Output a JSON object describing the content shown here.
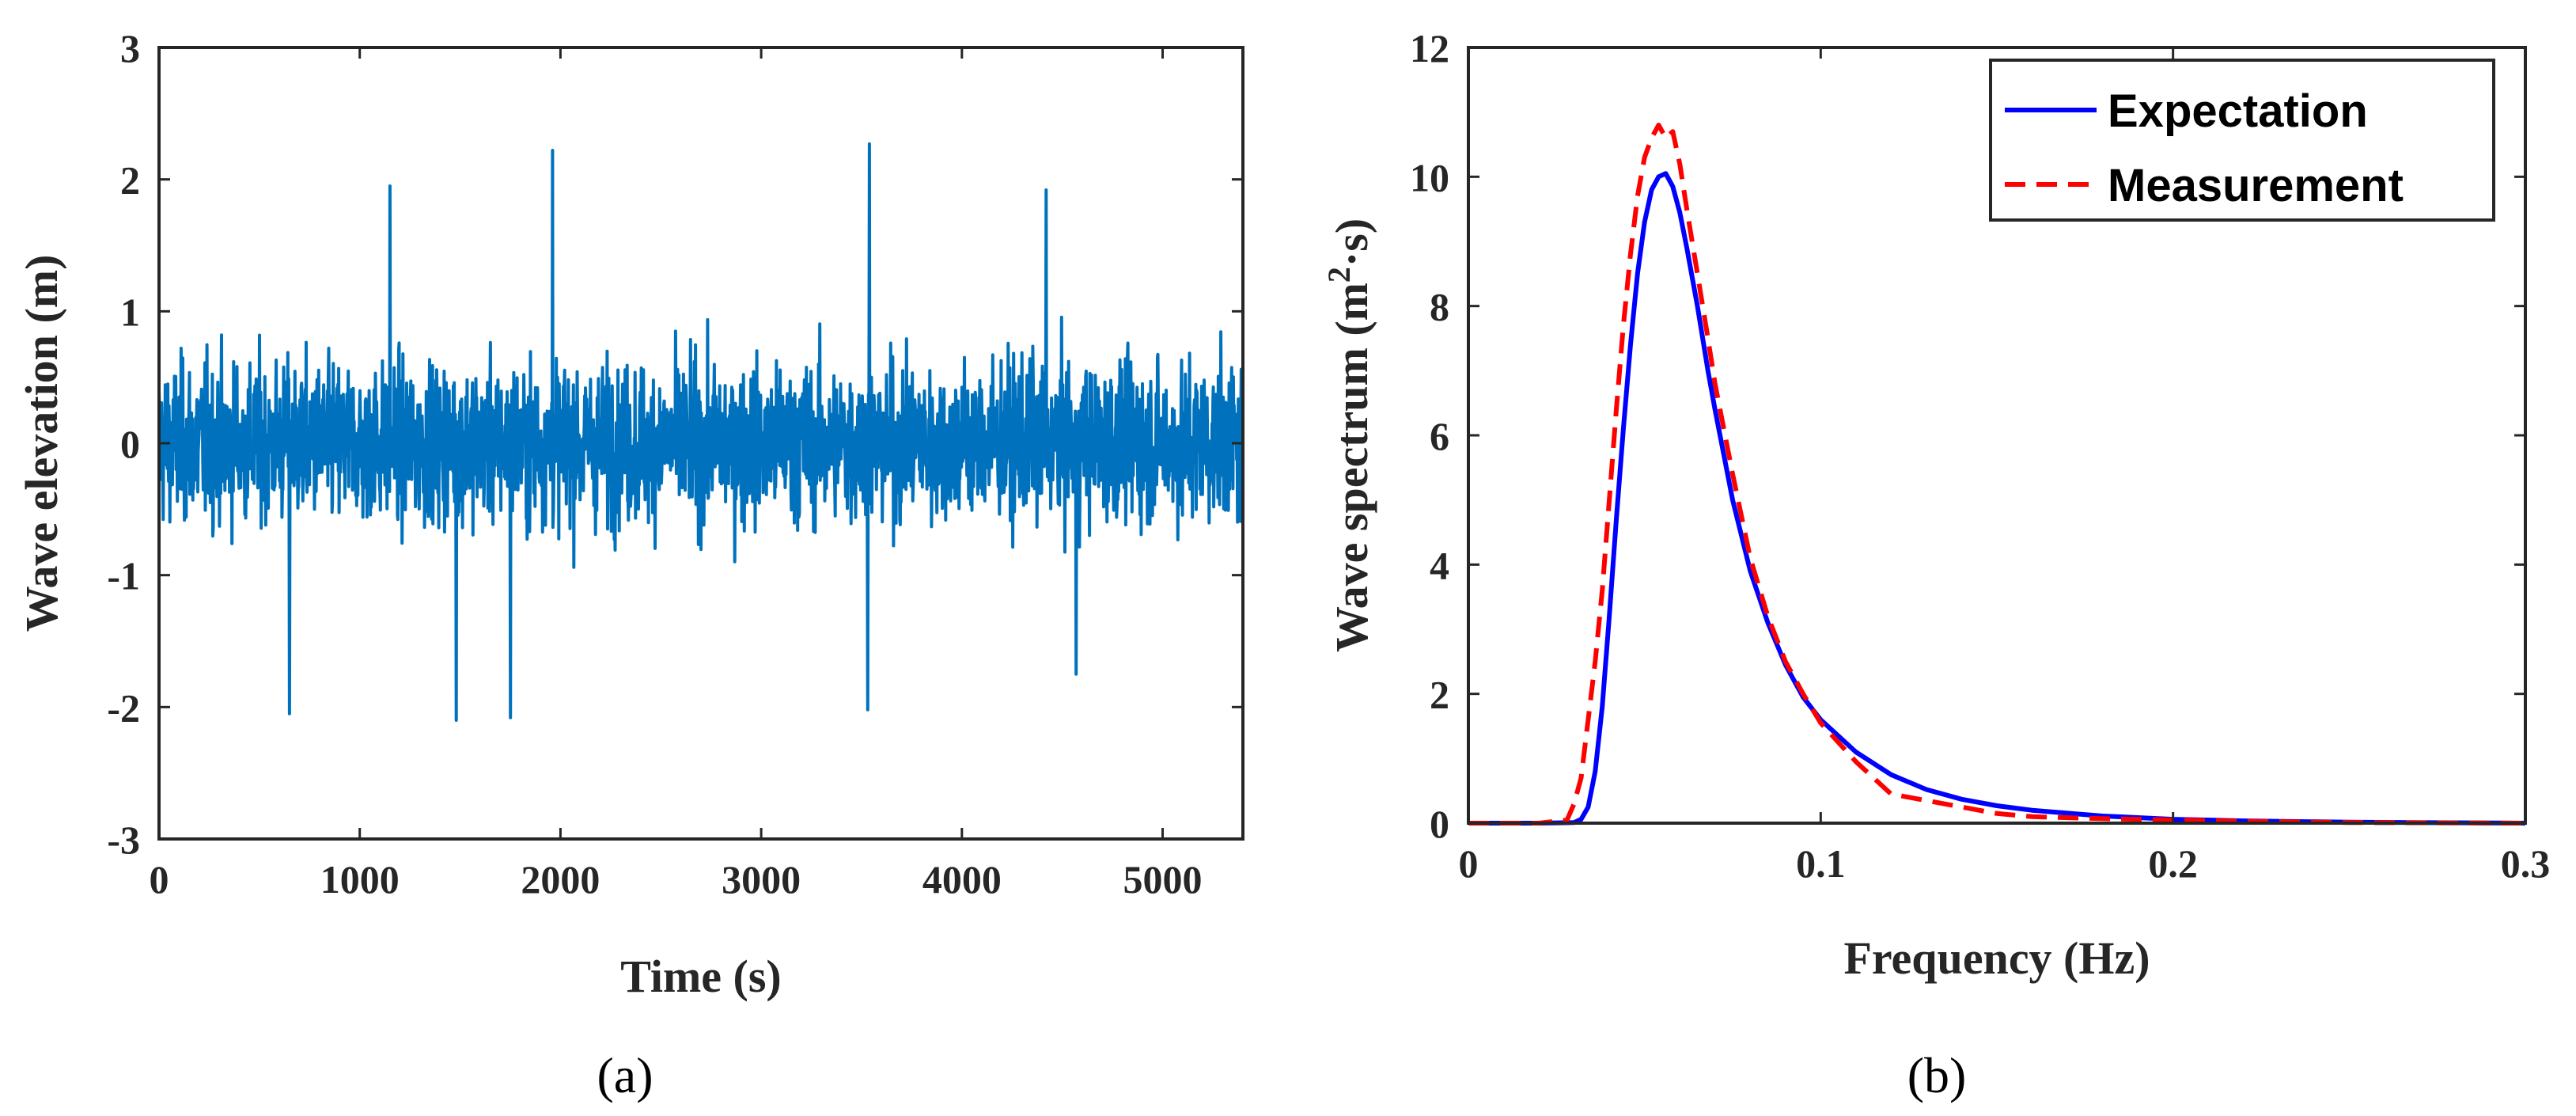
{
  "chart_data": [
    {
      "type": "line",
      "panel_label": "(a)",
      "xlabel": "Time (s)",
      "ylabel": "Wave elevation (m)",
      "xlim": [
        0,
        5400
      ],
      "ylim": [
        -3,
        3
      ],
      "xticks": [
        0,
        1000,
        2000,
        3000,
        4000,
        5000
      ],
      "yticks": [
        -3,
        -2,
        -1,
        0,
        1,
        2,
        3
      ],
      "grid": false,
      "series": [
        {
          "name": "Wave elevation",
          "color": "#0072BD",
          "description_values": {
            "duration_s": 5400,
            "typical_amplitude_m": 1.0,
            "max_m": 2.27,
            "min_m": -2.1,
            "notable_peaks": [
              {
                "x": 1960,
                "y": 2.22
              },
              {
                "x": 3540,
                "y": 2.27
              },
              {
                "x": 1150,
                "y": 1.95
              },
              {
                "x": 4420,
                "y": 1.92
              },
              {
                "x": 1480,
                "y": -2.1
              },
              {
                "x": 1750,
                "y": -2.08
              },
              {
                "x": 3530,
                "y": -2.02
              },
              {
                "x": 650,
                "y": -2.05
              },
              {
                "x": 4570,
                "y": -1.75
              }
            ]
          }
        }
      ]
    },
    {
      "type": "line",
      "panel_label": "(b)",
      "xlabel": "Frequency (Hz)",
      "ylabel_prefix": "Wave spectrum (m",
      "ylabel_sup": "2",
      "ylabel_suffix": "·s)",
      "xlim": [
        0,
        0.3
      ],
      "ylim": [
        0,
        12
      ],
      "xticks": [
        0,
        0.1,
        0.2,
        0.3
      ],
      "xtick_labels": [
        "0",
        "0.1",
        "0.2",
        "0.3"
      ],
      "yticks": [
        0,
        2,
        4,
        6,
        8,
        10,
        12
      ],
      "grid": false,
      "legend_position": "top-right",
      "series": [
        {
          "name": "Expectation",
          "color": "#0000FF",
          "style": "solid",
          "x": [
            0,
            0.02,
            0.03,
            0.032,
            0.034,
            0.036,
            0.038,
            0.04,
            0.042,
            0.044,
            0.046,
            0.048,
            0.05,
            0.052,
            0.054,
            0.056,
            0.058,
            0.06,
            0.062,
            0.065,
            0.068,
            0.07,
            0.075,
            0.08,
            0.085,
            0.09,
            0.095,
            0.1,
            0.11,
            0.12,
            0.13,
            0.14,
            0.15,
            0.16,
            0.18,
            0.2,
            0.22,
            0.25,
            0.3
          ],
          "y": [
            0,
            0,
            0.01,
            0.06,
            0.25,
            0.8,
            1.8,
            3.2,
            4.7,
            6.1,
            7.4,
            8.5,
            9.3,
            9.8,
            10.0,
            10.05,
            9.85,
            9.45,
            8.9,
            8.0,
            7.0,
            6.4,
            5.0,
            3.9,
            3.1,
            2.45,
            1.95,
            1.6,
            1.1,
            0.75,
            0.52,
            0.37,
            0.27,
            0.2,
            0.11,
            0.06,
            0.035,
            0.015,
            0
          ]
        },
        {
          "name": "Measurement",
          "color": "#FF0000",
          "style": "dashed",
          "x": [
            0,
            0.02,
            0.028,
            0.03,
            0.032,
            0.034,
            0.036,
            0.038,
            0.04,
            0.042,
            0.044,
            0.046,
            0.048,
            0.05,
            0.052,
            0.054,
            0.056,
            0.058,
            0.06,
            0.062,
            0.065,
            0.068,
            0.07,
            0.075,
            0.08,
            0.085,
            0.09,
            0.095,
            0.1,
            0.105,
            0.11,
            0.115,
            0.12,
            0.125,
            0.13,
            0.14,
            0.15,
            0.16,
            0.18,
            0.2,
            0.22,
            0.25,
            0.3
          ],
          "y": [
            0,
            0,
            0.05,
            0.3,
            0.7,
            1.6,
            2.5,
            3.6,
            5.0,
            6.4,
            7.7,
            8.8,
            9.7,
            10.3,
            10.6,
            10.8,
            10.6,
            10.7,
            10.2,
            9.5,
            8.5,
            7.5,
            6.8,
            5.4,
            4.1,
            3.2,
            2.5,
            2.0,
            1.55,
            1.25,
            0.95,
            0.7,
            0.45,
            0.4,
            0.35,
            0.25,
            0.15,
            0.1,
            0.07,
            0.05,
            0.03,
            0.01,
            0
          ]
        }
      ]
    }
  ]
}
